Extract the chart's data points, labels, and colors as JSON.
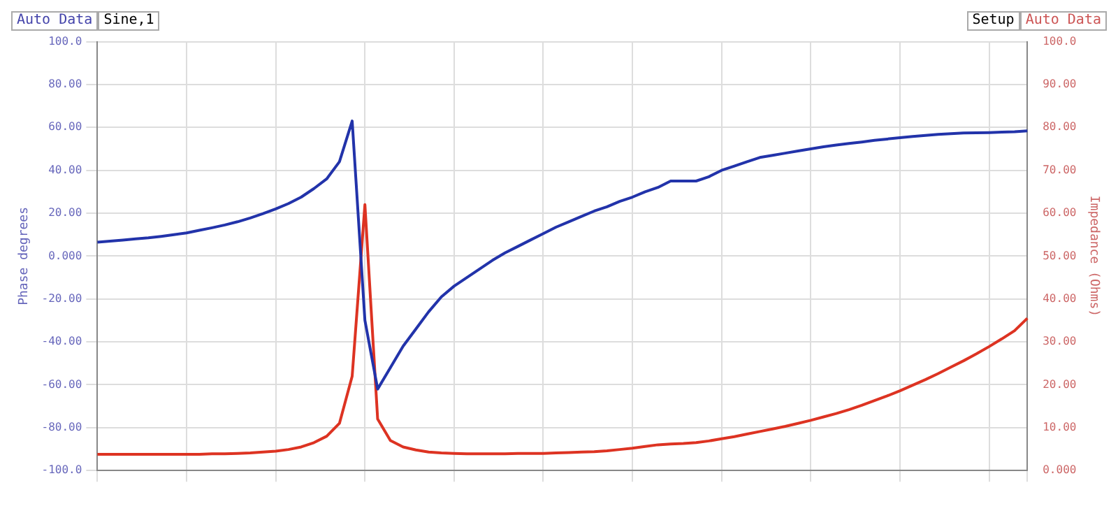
{
  "chart_data": {
    "type": "line",
    "annotations": [
      "Auto Data",
      "Sine,1",
      "Setup",
      "Auto Data"
    ],
    "ylabel": "Phase degrees",
    "y2label": "Impedance (Ohms)",
    "categories": [
      null,
      null,
      null,
      null,
      null,
      null,
      null,
      null,
      null,
      null,
      null,
      null,
      null,
      null,
      null,
      null,
      null,
      null,
      null,
      null,
      null,
      null,
      null,
      null,
      null,
      null,
      null,
      null,
      null,
      null,
      null,
      null,
      null,
      null,
      null,
      null,
      null,
      null,
      null,
      null,
      null,
      null,
      null,
      null,
      null,
      null,
      null,
      null,
      null,
      null,
      null,
      null,
      null,
      null,
      null,
      null,
      null,
      null,
      null,
      null,
      null,
      null,
      null,
      null,
      null,
      null,
      null,
      null,
      null,
      null,
      null,
      null,
      null,
      null
    ],
    "series": [
      {
        "color": "#2233aa",
        "values": [
          6.5,
          7,
          7.5,
          8,
          8.5,
          9.2,
          10,
          10.8,
          12,
          13.2,
          14.5,
          16,
          17.8,
          19.8,
          22,
          24.5,
          27.5,
          31.5,
          36,
          44,
          63,
          -30,
          -62,
          -52,
          -42,
          -34,
          -26,
          -19,
          -14,
          -10,
          -6,
          -2,
          1.5,
          4.5,
          7.5,
          10.5,
          13.5,
          16,
          18.5,
          21,
          23,
          25.5,
          27.5,
          30,
          32,
          35,
          35,
          35,
          37,
          40,
          42,
          44,
          46,
          47,
          48,
          49,
          50,
          51,
          51.8,
          52.5,
          53.2,
          54,
          54.6,
          55.2,
          55.8,
          56.3,
          56.8,
          57.1,
          57.4,
          57.5,
          57.6,
          57.8,
          58,
          58.4
        ]
      },
      {
        "color": "#dd3322",
        "axis": "y2",
        "values": [
          3.8,
          3.8,
          3.8,
          3.8,
          3.8,
          3.8,
          3.8,
          3.8,
          3.8,
          3.9,
          3.9,
          4,
          4.1,
          4.3,
          4.5,
          4.9,
          5.5,
          6.5,
          8,
          11,
          22,
          62,
          12,
          7,
          5.5,
          4.8,
          4.3,
          4.1,
          4,
          3.9,
          3.9,
          3.9,
          3.9,
          4,
          4,
          4,
          4.1,
          4.2,
          4.3,
          4.4,
          4.6,
          4.9,
          5.2,
          5.6,
          6,
          6.2,
          6.3,
          6.5,
          6.9,
          7.4,
          7.9,
          8.5,
          9.1,
          9.7,
          10.3,
          11,
          11.7,
          12.5,
          13.3,
          14.2,
          15.2,
          16.3,
          17.4,
          18.6,
          19.9,
          21.2,
          22.6,
          24.1,
          25.6,
          27.2,
          28.9,
          30.7,
          32.6,
          35.5
        ]
      }
    ],
    "ylim": [
      -100,
      100
    ],
    "yticks": [
      {
        "value": -100,
        "label": "-100.0"
      },
      {
        "value": -80,
        "label": "-80.00"
      },
      {
        "value": -60,
        "label": "-60.00"
      },
      {
        "value": -40,
        "label": "-40.00"
      },
      {
        "value": -20,
        "label": "-20.00"
      },
      {
        "value": 0,
        "label": "0.000"
      },
      {
        "value": 20,
        "label": "20.00"
      },
      {
        "value": 40,
        "label": "40.00"
      },
      {
        "value": 60,
        "label": "60.00"
      },
      {
        "value": 80,
        "label": "80.00"
      },
      {
        "value": 100,
        "label": "100.0"
      }
    ],
    "y2lim": [
      0,
      100
    ],
    "y2ticks": [
      {
        "value": 0,
        "label": "0.000"
      },
      {
        "value": 10,
        "label": "10.00"
      },
      {
        "value": 20,
        "label": "20.00"
      },
      {
        "value": 30,
        "label": "30.00"
      },
      {
        "value": 40,
        "label": "40.00"
      },
      {
        "value": 50,
        "label": "50.00"
      },
      {
        "value": 60,
        "label": "60.00"
      },
      {
        "value": 70,
        "label": "70.00"
      },
      {
        "value": 80,
        "label": "80.00"
      },
      {
        "value": 90,
        "label": "90.00"
      },
      {
        "value": 100,
        "label": "100.0"
      }
    ],
    "grid": true,
    "marker": "none",
    "line_style": "solid",
    "legend": false
  }
}
